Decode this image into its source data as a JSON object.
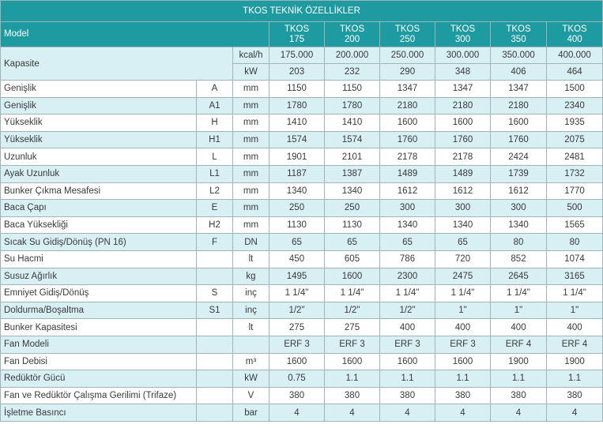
{
  "title": "TKOS TEKNİK ÖZELLİKLER",
  "model_label": "Model",
  "models": [
    {
      "line1": "TKOS",
      "line2": "175"
    },
    {
      "line1": "TKOS",
      "line2": "200"
    },
    {
      "line1": "TKOS",
      "line2": "250"
    },
    {
      "line1": "TKOS",
      "line2": "300"
    },
    {
      "line1": "TKOS",
      "line2": "350"
    },
    {
      "line1": "TKOS",
      "line2": "400"
    }
  ],
  "capacity": {
    "label": "Kapasite",
    "rows": [
      {
        "unit": "kcal/h",
        "values": [
          "175.000",
          "200.000",
          "250.000",
          "300.000",
          "350.000",
          "400.000"
        ]
      },
      {
        "unit": "kW",
        "values": [
          "203",
          "232",
          "290",
          "348",
          "406",
          "464"
        ]
      }
    ]
  },
  "rows": [
    {
      "name": "Genişlik",
      "symbol": "A",
      "unit": "mm",
      "values": [
        "1150",
        "1150",
        "1347",
        "1347",
        "1347",
        "1500"
      ]
    },
    {
      "name": "Genişlik",
      "symbol": "A1",
      "unit": "mm",
      "values": [
        "1780",
        "1780",
        "2180",
        "2180",
        "2180",
        "2340"
      ]
    },
    {
      "name": "Yükseklik",
      "symbol": "H",
      "unit": "mm",
      "values": [
        "1410",
        "1410",
        "1600",
        "1600",
        "1600",
        "1935"
      ]
    },
    {
      "name": "Yükseklik",
      "symbol": "H1",
      "unit": "mm",
      "values": [
        "1574",
        "1574",
        "1760",
        "1760",
        "1760",
        "2075"
      ]
    },
    {
      "name": "Uzunluk",
      "symbol": "L",
      "unit": "mm",
      "values": [
        "1901",
        "2101",
        "2178",
        "2178",
        "2424",
        "2481"
      ]
    },
    {
      "name": "Ayak Uzunluk",
      "symbol": "L1",
      "unit": "mm",
      "values": [
        "1187",
        "1387",
        "1489",
        "1489",
        "1739",
        "1732"
      ]
    },
    {
      "name": "Bunker Çıkma Mesafesi",
      "symbol": "L2",
      "unit": "mm",
      "values": [
        "1340",
        "1340",
        "1612",
        "1612",
        "1612",
        "1770"
      ]
    },
    {
      "name": "Baca Çapı",
      "symbol": "E",
      "unit": "mm",
      "values": [
        "250",
        "250",
        "300",
        "300",
        "300",
        "500"
      ]
    },
    {
      "name": "Baca Yüksekliği",
      "symbol": "H2",
      "unit": "mm",
      "values": [
        "1130",
        "1130",
        "1340",
        "1340",
        "1340",
        "1565"
      ]
    },
    {
      "name": "Sıcak Su Gidiş/Dönüş (PN 16)",
      "symbol": "F",
      "unit": "DN",
      "values": [
        "65",
        "65",
        "65",
        "65",
        "80",
        "80"
      ]
    },
    {
      "name": "Su Hacmi",
      "symbol": "",
      "unit": "lt",
      "values": [
        "450",
        "605",
        "786",
        "720",
        "852",
        "1074"
      ]
    },
    {
      "name": "Susuz Ağırlık",
      "symbol": "",
      "unit": "kg",
      "values": [
        "1495",
        "1600",
        "2300",
        "2475",
        "2645",
        "3165"
      ]
    },
    {
      "name": "Emniyet Gidiş/Dönüş",
      "symbol": "S",
      "unit": "inç",
      "values": [
        "1 1/4\"",
        "1 1/4\"",
        "1 1/4\"",
        "1 1/4\"",
        "1 1/4\"",
        "1 1/4\""
      ]
    },
    {
      "name": "Doldurma/Boşaltma",
      "symbol": "S1",
      "unit": "inç",
      "values": [
        "1/2\"",
        "1/2\"",
        "1/2\"",
        "1\"",
        "1\"",
        "1\""
      ]
    },
    {
      "name": "Bunker Kapasitesi",
      "symbol": "",
      "unit": "lt",
      "values": [
        "275",
        "275",
        "400",
        "400",
        "400",
        "400"
      ]
    },
    {
      "name": "Fan Modeli",
      "symbol": "",
      "unit": "",
      "values": [
        "ERF 3",
        "ERF 3",
        "ERF 3",
        "ERF 3",
        "ERF 4",
        "ERF 4"
      ]
    },
    {
      "name": "Fan Debisi",
      "symbol": "",
      "unit": "m³",
      "values": [
        "1600",
        "1600",
        "1600",
        "1600",
        "1900",
        "1900"
      ]
    },
    {
      "name": "Redüktör Gücü",
      "symbol": "",
      "unit": "kW",
      "values": [
        "0.75",
        "1.1",
        "1.1",
        "1.1",
        "1.1",
        "1.1"
      ]
    },
    {
      "name": "Fan ve Redüktör Çalışma Gerilimi (Trifaze)",
      "symbol": "",
      "unit": "V",
      "values": [
        "380",
        "380",
        "380",
        "380",
        "380",
        "380"
      ]
    },
    {
      "name": "İşletme Basıncı",
      "symbol": "",
      "unit": "bar",
      "values": [
        "4",
        "4",
        "4",
        "4",
        "4",
        "4"
      ]
    }
  ],
  "colors": {
    "header_bg": "#1e9aa1",
    "header_text": "#ffffff",
    "stripe_bg": "#d8eff4",
    "border": "#9fb3b8"
  }
}
